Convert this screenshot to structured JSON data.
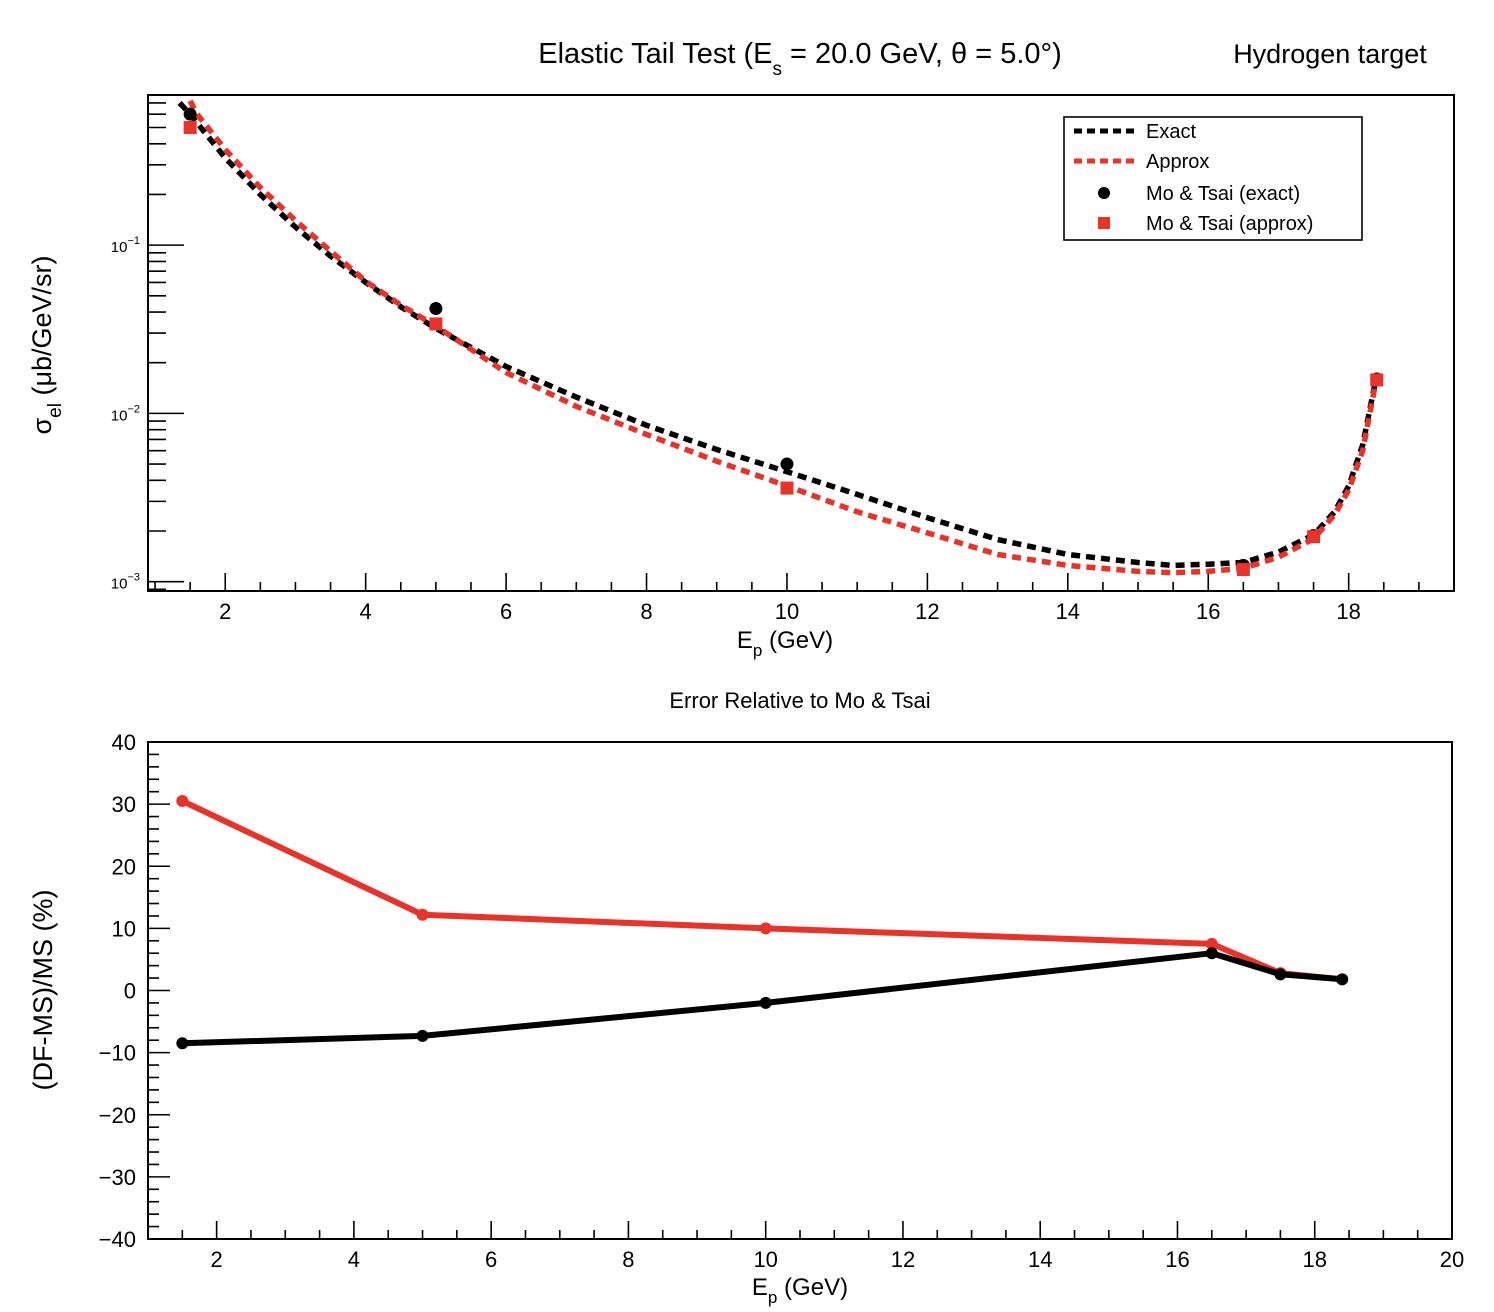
{
  "title": "Elastic Tail Test (E_s = 20.0 GeV, θ = 5.0°)",
  "title_parts": {
    "pre": "Elastic Tail Test (E",
    "sub": "s",
    "post": " = 20.0 GeV, θ = 5.0°)"
  },
  "corner_label": "Hydrogen target",
  "chart_data": [
    {
      "type": "line",
      "id": "cross-section",
      "xlabel": "E_p (GeV)",
      "xlabel_parts": {
        "pre": "E",
        "sub": "p",
        "post": " (GeV)"
      },
      "ylabel": "σ_el (μb/GeV/sr)",
      "ylabel_parts": {
        "pre": "σ",
        "sub": "el",
        "post": " (μb/GeV/sr)"
      },
      "xlim": [
        0.9,
        19.5
      ],
      "ylim": [
        0.00088,
        0.78
      ],
      "yscale": "log",
      "xticks": [
        "2",
        "4",
        "6",
        "8",
        "10",
        "12",
        "14",
        "16",
        "18"
      ],
      "yticks": [
        {
          "value": 0.1,
          "base": "10",
          "exp": "−1"
        },
        {
          "value": 0.01,
          "base": "10",
          "exp": "−2"
        },
        {
          "value": 0.001,
          "base": "10",
          "exp": "−3"
        }
      ],
      "legend_position": "top-right",
      "legend": [
        {
          "label": "Exact",
          "kind": "dashed-line",
          "color": "#000000"
        },
        {
          "label": "Approx",
          "kind": "dashed-line",
          "color": "#e8322a"
        },
        {
          "label": "Mo & Tsai (exact)",
          "kind": "circle",
          "color": "#000000"
        },
        {
          "label": "Mo & Tsai (approx)",
          "kind": "square",
          "color": "#e8322a"
        }
      ],
      "series": [
        {
          "name": "Exact",
          "style": "dashed",
          "color": "#000000",
          "x": [
            1.35,
            1.5,
            2,
            2.5,
            3,
            3.5,
            4,
            4.5,
            5,
            6,
            7,
            8,
            9,
            10,
            11,
            12,
            13,
            14,
            15,
            15.5,
            16,
            16.5,
            17,
            17.5,
            17.8,
            18,
            18.2,
            18.4
          ],
          "y": [
            0.7,
            0.6,
            0.33,
            0.2,
            0.128,
            0.086,
            0.06,
            0.043,
            0.032,
            0.019,
            0.0125,
            0.0085,
            0.0061,
            0.0045,
            0.0033,
            0.0024,
            0.00178,
            0.00145,
            0.0013,
            0.00125,
            0.00127,
            0.0013,
            0.0015,
            0.0019,
            0.0026,
            0.0037,
            0.0065,
            0.017
          ]
        },
        {
          "name": "Approx",
          "style": "dashed",
          "color": "#e8322a",
          "x": [
            1.5,
            1.6,
            2,
            2.5,
            3,
            3.5,
            4,
            4.5,
            5,
            6,
            7,
            8,
            9,
            10,
            11,
            12,
            13,
            14,
            15,
            15.5,
            16,
            16.5,
            17,
            17.5,
            17.8,
            18,
            18.2,
            18.4
          ],
          "y": [
            0.72,
            0.6,
            0.37,
            0.22,
            0.14,
            0.092,
            0.061,
            0.044,
            0.033,
            0.0175,
            0.011,
            0.0075,
            0.0052,
            0.0037,
            0.0026,
            0.00195,
            0.00145,
            0.00125,
            0.00115,
            0.00113,
            0.00115,
            0.0012,
            0.0014,
            0.0018,
            0.0025,
            0.0035,
            0.006,
            0.0165
          ]
        },
        {
          "name": "Mo & Tsai (exact)",
          "style": "markers",
          "marker": "circle",
          "color": "#000000",
          "x": [
            1.5,
            5,
            10,
            16.5,
            17.5,
            18.4
          ],
          "y": [
            0.6,
            0.042,
            0.005,
            0.00125,
            0.00188,
            0.016
          ]
        },
        {
          "name": "Mo & Tsai (approx)",
          "style": "markers",
          "marker": "square",
          "color": "#e8322a",
          "x": [
            1.5,
            5,
            10,
            16.5,
            17.5,
            18.4
          ],
          "y": [
            0.5,
            0.034,
            0.0036,
            0.00118,
            0.00185,
            0.0158
          ]
        }
      ]
    },
    {
      "type": "line",
      "id": "relative-error",
      "title": "Error Relative to Mo & Tsai",
      "xlabel": "E_p (GeV)",
      "xlabel_parts": {
        "pre": "E",
        "sub": "p",
        "post": " (GeV)"
      },
      "ylabel": "(DF-MS)/MS (%)",
      "xlim": [
        1,
        20
      ],
      "ylim": [
        -40,
        40
      ],
      "xticks": [
        "2",
        "4",
        "6",
        "8",
        "10",
        "12",
        "14",
        "16",
        "18",
        "20"
      ],
      "yticks": [
        "40",
        "30",
        "20",
        "10",
        "0",
        "−10",
        "−20",
        "−30",
        "−40"
      ],
      "series": [
        {
          "color": "#e8322a",
          "x": [
            1.5,
            5,
            10,
            16.5,
            17.5,
            18.4
          ],
          "y": [
            30.5,
            12.2,
            10.0,
            7.5,
            2.8,
            1.8
          ]
        },
        {
          "color": "#000000",
          "x": [
            1.5,
            5,
            10,
            16.5,
            17.5,
            18.4
          ],
          "y": [
            -8.5,
            -7.3,
            -2.0,
            6.0,
            2.6,
            1.8
          ]
        }
      ]
    }
  ]
}
